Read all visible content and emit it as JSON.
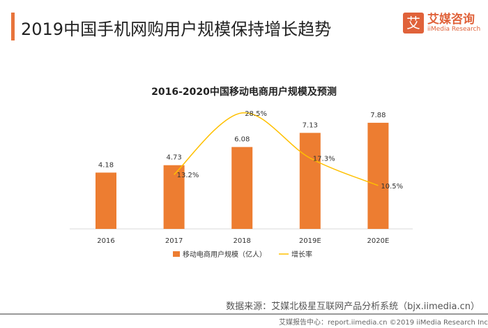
{
  "header": {
    "title": "2019中国手机网购用户规模保持增长趋势",
    "logo_mark": "艾",
    "logo_cn": "艾媒咨询",
    "logo_en": "iiMedia Research"
  },
  "chart_data": {
    "type": "bar+line",
    "title": "2016-2020中国移动电商用户规模及预测",
    "categories": [
      "2016",
      "2017",
      "2018",
      "2019E",
      "2020E"
    ],
    "series": [
      {
        "name": "移动电商用户规模（亿人）",
        "type": "bar",
        "color": "#ed7d31",
        "values": [
          4.18,
          4.73,
          6.08,
          7.13,
          7.88
        ],
        "labels": [
          "4.18",
          "4.73",
          "6.08",
          "7.13",
          "7.88"
        ]
      },
      {
        "name": "增长率",
        "type": "line",
        "color": "#ffc000",
        "values": [
          null,
          13.2,
          28.5,
          17.3,
          10.5
        ],
        "labels": [
          "",
          "13.2%",
          "28.5%",
          "17.3%",
          "10.5%"
        ]
      }
    ],
    "legend": "bottom",
    "grid": false
  },
  "footer": {
    "source": "数据来源：艾媒北极星互联网产品分析系统（bjx.iimedia.cn）",
    "copyright": "艾媒报告中心：report.iimedia.cn  ©2019  iiMedia Research Inc"
  }
}
